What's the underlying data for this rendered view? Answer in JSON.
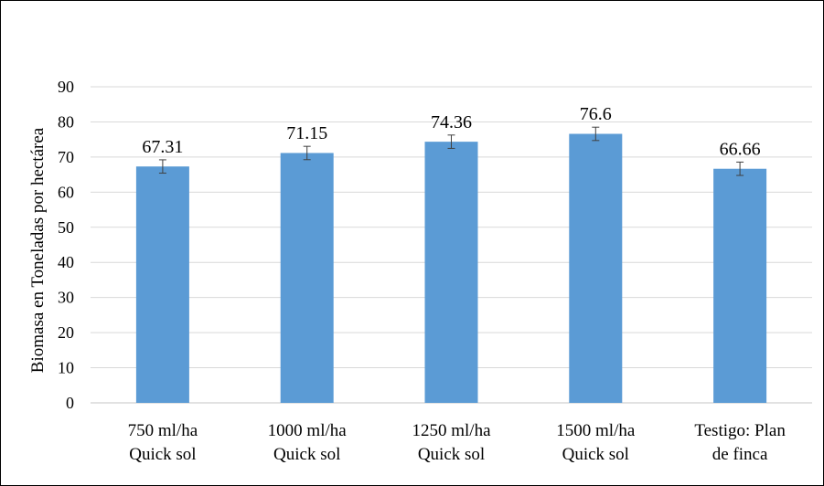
{
  "chart_data": {
    "type": "bar",
    "title": "",
    "ylabel": "Biomasa en Toneladas por hectárea",
    "xlabel": "",
    "ylim": [
      0,
      90
    ],
    "yticks": [
      0,
      10,
      20,
      30,
      40,
      50,
      60,
      70,
      80,
      90
    ],
    "grid": true,
    "categories": [
      [
        "750 ml/ha",
        "Quick sol"
      ],
      [
        "1000 ml/ha",
        "Quick sol"
      ],
      [
        "1250 ml/ha",
        "Quick sol"
      ],
      [
        "1500 ml/ha",
        "Quick sol"
      ],
      [
        "Testigo: Plan",
        "de finca"
      ]
    ],
    "values": [
      67.31,
      71.15,
      74.36,
      76.6,
      66.66
    ],
    "data_labels": [
      "67.31",
      "71.15",
      "74.36",
      "76.6",
      "66.66"
    ],
    "error_bars": [
      1.9,
      1.9,
      1.9,
      1.9,
      1.9
    ],
    "bar_color": "#5B9BD5",
    "grid_color": "#D9D9D9",
    "error_bar_color": "#404040"
  }
}
